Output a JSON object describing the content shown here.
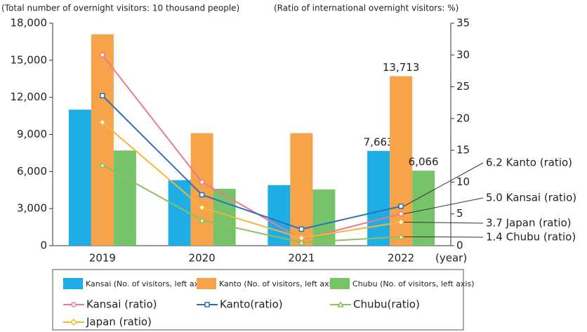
{
  "chart_data": {
    "type": "bar",
    "y_label": "(Total number of overnight visitors: 10 thousand people)",
    "y2_label": "(Ratio of international overnight visitors: %)",
    "x_label": "(year)",
    "categories": [
      "2019",
      "2020",
      "2021",
      "2022"
    ],
    "ylim": [
      0,
      18000
    ],
    "yticks": [
      0,
      {
        "value": 3000,
        "label": "3,000"
      },
      {
        "value": 6000,
        "label": "6,000"
      },
      {
        "value": 9000,
        "label": "9,000"
      },
      {
        "value": 12000,
        "label": "12,000"
      },
      {
        "value": 15000,
        "label": "15,000"
      },
      {
        "value": 18000,
        "label": "18,000"
      }
    ],
    "y2lim": [
      0,
      35
    ],
    "y2ticks": [
      0,
      5,
      10,
      15,
      20,
      25,
      30,
      35
    ],
    "series": [
      {
        "name": "Kansai (No. of visitors, left axis)",
        "type": "bar",
        "axis": "y",
        "color": "#1eaee5",
        "values": [
          11000,
          5300,
          4900,
          7663
        ],
        "value_labels": [
          null,
          null,
          null,
          "7,663"
        ]
      },
      {
        "name": "Kanto (No. of visitors, left axis)",
        "type": "bar",
        "axis": "y",
        "color": "#f7a34a",
        "values": [
          17100,
          9100,
          9100,
          13713
        ],
        "value_labels": [
          null,
          null,
          null,
          "13,713"
        ]
      },
      {
        "name": "Chubu (No. of visitors, left axis)",
        "type": "bar",
        "axis": "y",
        "color": "#76c36a",
        "values": [
          7700,
          4600,
          4550,
          6066
        ],
        "value_labels": [
          null,
          null,
          null,
          "6,066"
        ]
      },
      {
        "name": "Kansai (ratio)",
        "type": "line",
        "axis": "y2",
        "marker": "circle",
        "color": "#ec7a8e",
        "values": [
          30,
          10,
          1,
          5.0
        ],
        "value_labels": [
          null,
          null,
          null,
          "5.0 Kansai (ratio)"
        ]
      },
      {
        "name": "Kanto(ratio)",
        "type": "line",
        "axis": "y2",
        "marker": "square",
        "color": "#2f6fba",
        "values": [
          23.6,
          8,
          2.6,
          6.2
        ],
        "value_labels": [
          null,
          null,
          null,
          "6.2 Kanto (ratio)"
        ]
      },
      {
        "name": "Chubu(ratio)",
        "type": "line",
        "axis": "y2",
        "marker": "triangle",
        "color": "#8fbf5f",
        "values": [
          12.7,
          4,
          0.5,
          1.4
        ],
        "value_labels": [
          null,
          null,
          null,
          "1.4 Chubu (ratio)"
        ]
      },
      {
        "name": "Japan (ratio)",
        "type": "line",
        "axis": "y2",
        "marker": "diamond",
        "color": "#f2b63a",
        "values": [
          19.4,
          6,
          1.2,
          3.7
        ],
        "value_labels": [
          null,
          null,
          null,
          "3.7 Japan (ratio)"
        ]
      }
    ]
  }
}
